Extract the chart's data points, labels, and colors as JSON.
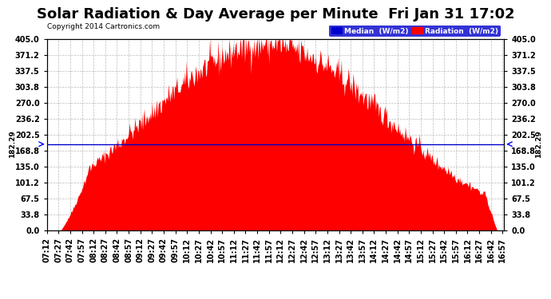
{
  "title": "Solar Radiation & Day Average per Minute  Fri Jan 31 17:02",
  "copyright": "Copyright 2014 Cartronics.com",
  "legend_median": "Median  (W/m2)",
  "legend_radiation": "Radiation  (W/m2)",
  "ymin": 0.0,
  "ymax": 405.0,
  "yticks": [
    0.0,
    33.8,
    67.5,
    101.2,
    135.0,
    168.8,
    202.5,
    236.2,
    270.0,
    303.8,
    337.5,
    371.2,
    405.0
  ],
  "median_value": 182.29,
  "background_color": "#ffffff",
  "fill_color": "#ff0000",
  "grid_color": "#aaaaaa",
  "median_line_color": "#0000cc",
  "title_fontsize": 13,
  "tick_label_fontsize": 7,
  "copyright_fontsize": 6.5
}
